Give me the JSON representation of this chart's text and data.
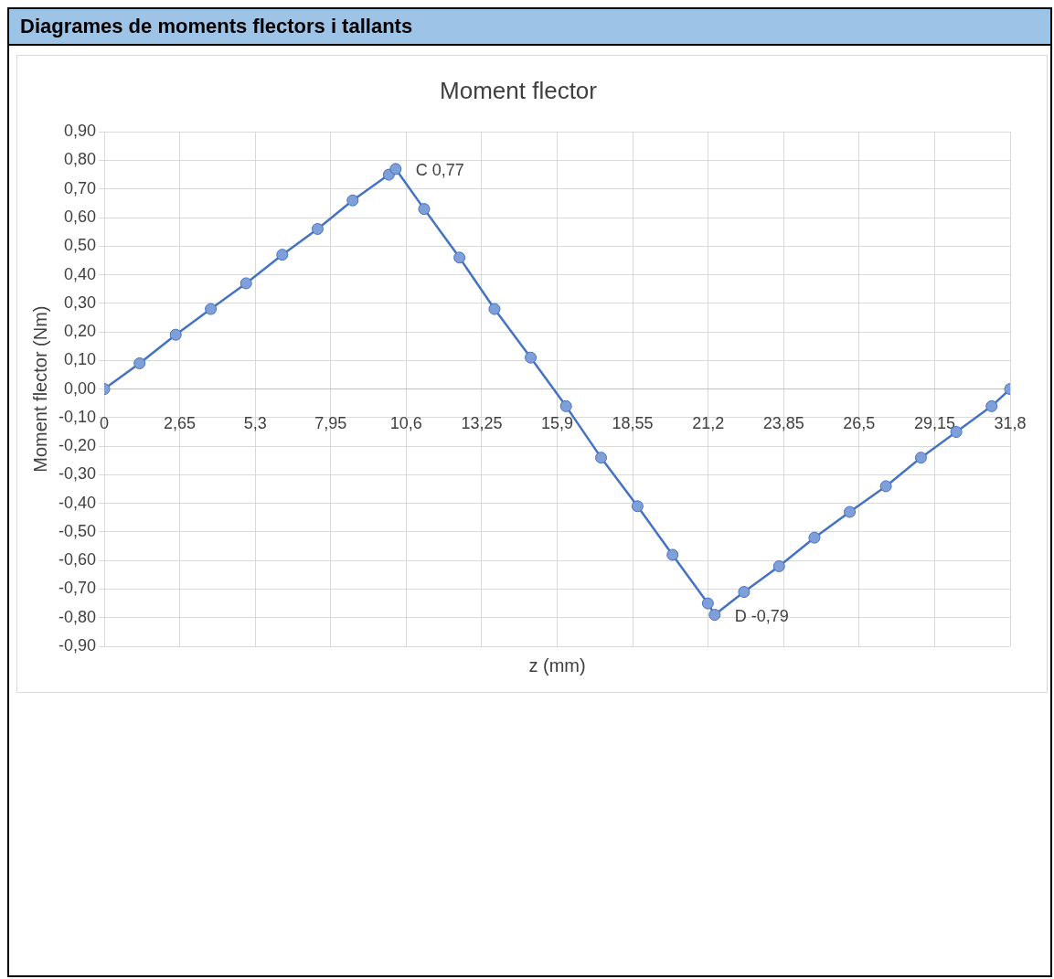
{
  "chart_data": {
    "type": "line",
    "subtitle": "Diagrames de moments flectors i tallants",
    "title": "Moment flector",
    "xlabel": "z (mm)",
    "ylabel": "Moment flector (Nm)",
    "x": [
      0,
      1.24,
      2.51,
      3.74,
      4.98,
      6.25,
      7.49,
      8.72,
      9.99,
      10.23,
      11.23,
      12.47,
      13.7,
      14.97,
      16.21,
      17.44,
      18.72,
      19.95,
      21.19,
      21.43,
      22.46,
      23.69,
      24.93,
      26.17,
      27.44,
      28.67,
      29.91,
      31.15,
      31.8
    ],
    "series": [
      {
        "color": "#4472c4",
        "values": [
          0,
          0.09,
          0.19,
          0.28,
          0.37,
          0.47,
          0.56,
          0.66,
          0.75,
          0.77,
          0.63,
          0.46,
          0.28,
          0.11,
          -0.06,
          -0.24,
          -0.41,
          -0.58,
          -0.75,
          -0.79,
          -0.71,
          -0.62,
          -0.52,
          -0.43,
          -0.34,
          -0.24,
          -0.15,
          -0.06,
          0
        ]
      }
    ],
    "xlim": [
      0,
      31.8
    ],
    "xticks": [
      0,
      {
        "value": 2.65,
        "label": "2,65"
      },
      {
        "value": 5.3,
        "label": "5,3"
      },
      {
        "value": 7.95,
        "label": "7,95"
      },
      {
        "value": 10.6,
        "label": "10,6"
      },
      {
        "value": 13.25,
        "label": "13,25"
      },
      {
        "value": 15.9,
        "label": "15,9"
      },
      {
        "value": 18.55,
        "label": "18,55"
      },
      {
        "value": 21.2,
        "label": "21,2"
      },
      {
        "value": 23.85,
        "label": "23,85"
      },
      {
        "value": 26.5,
        "label": "26,5"
      },
      {
        "value": 29.15,
        "label": "29,15"
      },
      {
        "value": 31.8,
        "label": "31,8"
      }
    ],
    "ylim": [
      -0.9,
      0.9
    ],
    "yticks": [
      {
        "value": -0.9,
        "label": "-0,90"
      },
      {
        "value": -0.8,
        "label": "-0,80"
      },
      {
        "value": -0.7,
        "label": "-0,70"
      },
      {
        "value": -0.6,
        "label": "-0,60"
      },
      {
        "value": -0.5,
        "label": "-0,50"
      },
      {
        "value": -0.4,
        "label": "-0,40"
      },
      {
        "value": -0.3,
        "label": "-0,30"
      },
      {
        "value": -0.2,
        "label": "-0,20"
      },
      {
        "value": -0.1,
        "label": "-0,10"
      },
      {
        "value": 0,
        "label": "0,00"
      },
      {
        "value": 0.1,
        "label": "0,10"
      },
      {
        "value": 0.2,
        "label": "0,20"
      },
      {
        "value": 0.3,
        "label": "0,30"
      },
      {
        "value": 0.4,
        "label": "0,40"
      },
      {
        "value": 0.5,
        "label": "0,50"
      },
      {
        "value": 0.6,
        "label": "0,60"
      },
      {
        "value": 0.7,
        "label": "0,70"
      },
      {
        "value": 0.8,
        "label": "0,80"
      },
      {
        "value": 0.9,
        "label": "0,90"
      }
    ],
    "annotations": [
      {
        "text": "C 0,77",
        "x": 10.23,
        "y": 0.77
      },
      {
        "text": "D -0,79",
        "x": 21.43,
        "y": -0.79
      }
    ],
    "grid": true,
    "legend": false,
    "marker": "circle",
    "line_style": "solid"
  }
}
